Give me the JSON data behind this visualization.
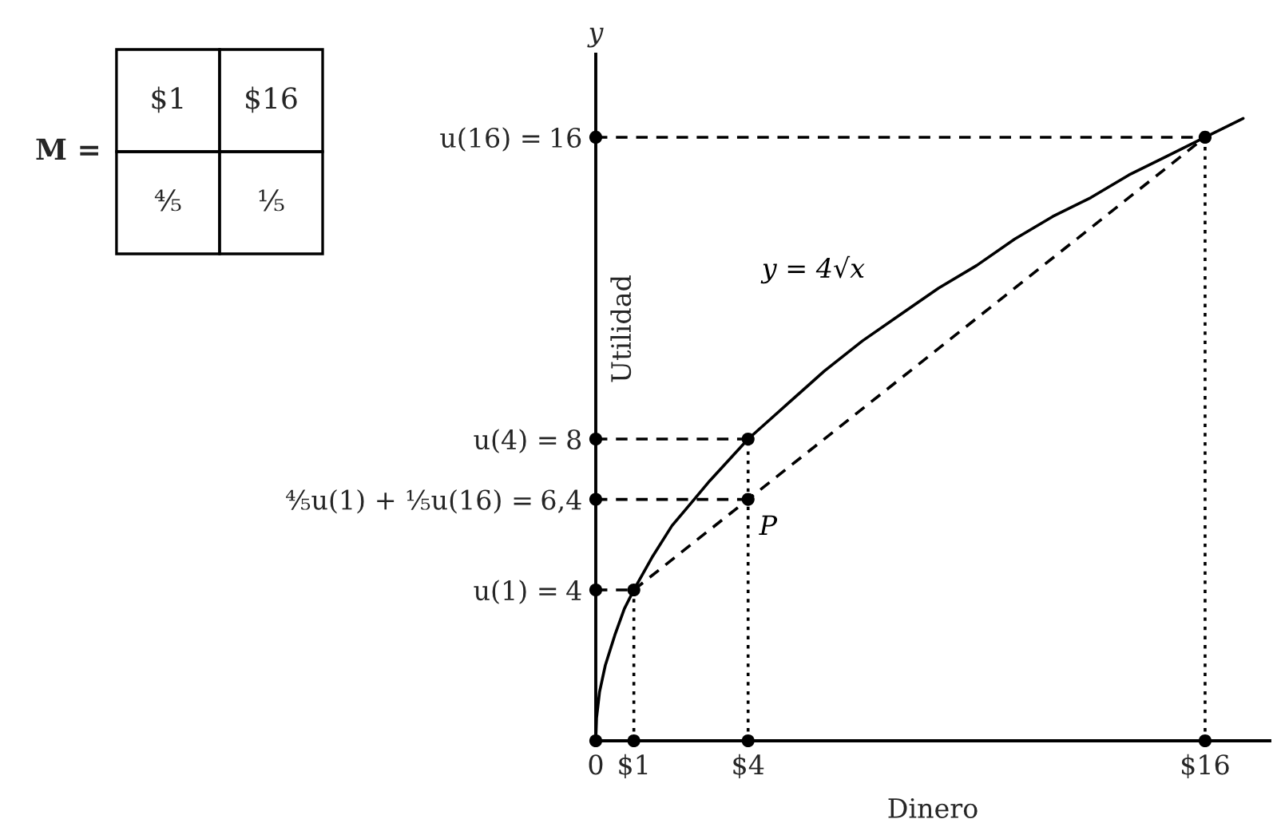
{
  "chart_data": [
    {
      "type": "line",
      "xlabel": "Dinero",
      "ylabel": "Utilidad",
      "xlim": [
        0,
        17.7
      ],
      "ylim": [
        0,
        18.2
      ],
      "xticks": [
        0,
        {
          "value": 1,
          "label": "$1"
        },
        {
          "value": 4,
          "label": "$4"
        },
        {
          "value": 16,
          "label": "$16"
        }
      ],
      "yticks": [
        4,
        {
          "value": 6.4,
          "label": "6,4"
        },
        8,
        16
      ],
      "series": [
        {
          "type": "line",
          "name": "y = 4√x",
          "color": "#000000",
          "line_style": "solid",
          "x": [
            0,
            0.02,
            0.1,
            0.25,
            0.5,
            0.75,
            1,
            1.5,
            2,
            2.5,
            3,
            4,
            5,
            6,
            7,
            8,
            9,
            10,
            11,
            12,
            13,
            14,
            15,
            16,
            17
          ],
          "values": [
            0,
            0.6,
            1.3,
            2,
            2.8,
            3.5,
            4,
            4.9,
            5.7,
            6.3,
            6.9,
            8,
            8.9,
            9.8,
            10.6,
            11.3,
            12,
            12.6,
            13.3,
            13.9,
            14.4,
            15,
            15.5,
            16,
            16.5
          ]
        },
        {
          "type": "line",
          "color": "#000000",
          "line_style": "dashed",
          "x": [
            1,
            4,
            16
          ],
          "values": [
            4,
            6.4,
            16
          ]
        },
        {
          "type": "line",
          "color": "#000000",
          "line_style": "dashed",
          "x": [
            0,
            16
          ],
          "values": [
            16,
            16
          ]
        },
        {
          "type": "line",
          "color": "#000000",
          "line_style": "dashed",
          "x": [
            0,
            4
          ],
          "values": [
            8,
            8
          ]
        },
        {
          "type": "line",
          "color": "#000000",
          "line_style": "dashed",
          "x": [
            0,
            4
          ],
          "values": [
            6.4,
            6.4
          ]
        },
        {
          "type": "line",
          "color": "#000000",
          "line_style": "dashed",
          "x": [
            0,
            1
          ],
          "values": [
            4,
            4
          ]
        },
        {
          "type": "line",
          "color": "#000000",
          "line_style": "dotted",
          "x": [
            1,
            1
          ],
          "values": [
            0,
            4
          ]
        },
        {
          "type": "line",
          "color": "#000000",
          "line_style": "dotted",
          "x": [
            4,
            4
          ],
          "values": [
            0,
            8
          ]
        },
        {
          "type": "line",
          "color": "#000000",
          "line_style": "dotted",
          "x": [
            16,
            16
          ],
          "values": [
            0,
            16
          ]
        },
        {
          "type": "scatter",
          "color": "#000000",
          "marker": "circle",
          "x": [
            0,
            1,
            4,
            16,
            0,
            0,
            0,
            0,
            1,
            4,
            16
          ],
          "values": [
            0,
            0,
            0,
            0,
            4,
            6.4,
            8,
            16,
            4,
            8,
            16
          ]
        },
        {
          "type": "scatter",
          "name": "P",
          "color": "#000000",
          "marker": "circle",
          "x": [
            4
          ],
          "values": [
            6.4
          ]
        }
      ],
      "annotations": [
        "y",
        "u(16) =",
        "u(4) =",
        "⅘u(1) + ⅕u(16) =",
        "u(1) ="
      ]
    },
    {
      "type": "other",
      "title": "M =",
      "annotations": [
        "$1",
        "$16",
        "⅘",
        "⅕"
      ]
    }
  ]
}
